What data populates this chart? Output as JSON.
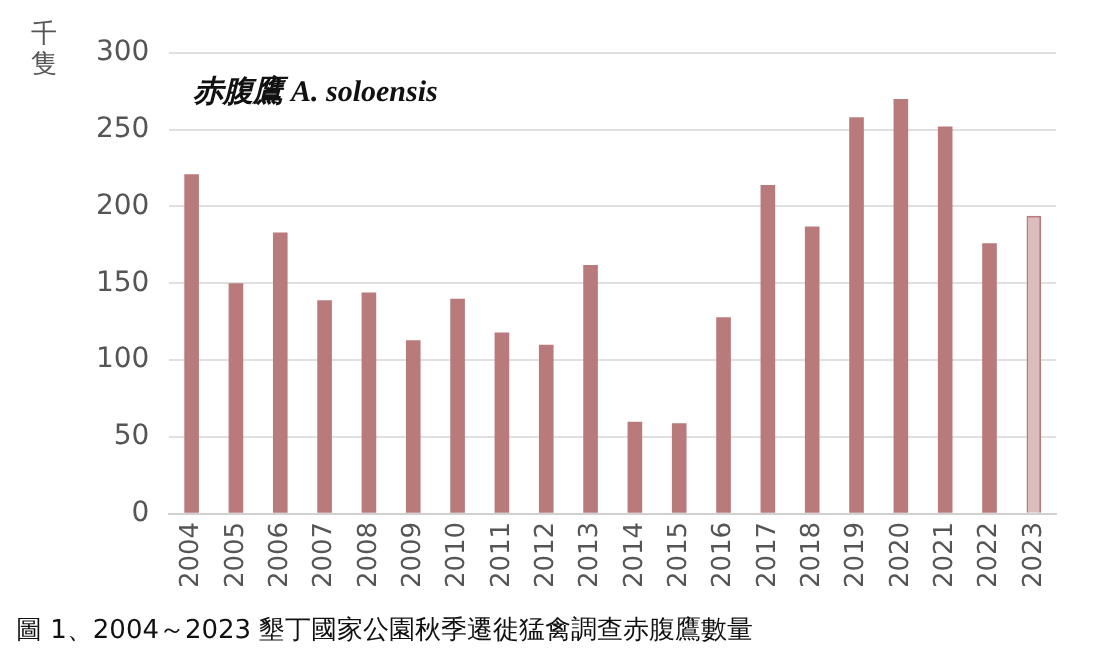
{
  "chart_data": {
    "type": "bar",
    "title": "赤腹鷹 A. soloensis",
    "ylabel": "千隻",
    "annotations": [
      "圖 1、2004～2023 墾丁國家公園秋季遷徙猛禽調查赤腹鷹數量"
    ],
    "categories": [
      "2004",
      "2005",
      "2006",
      "2007",
      "2008",
      "2009",
      "2010",
      "2011",
      "2012",
      "2013",
      "2014",
      "2015",
      "2016",
      "2017",
      "2018",
      "2019",
      "2020",
      "2021",
      "2022",
      "2023"
    ],
    "values": [
      221,
      150,
      183,
      139,
      144,
      113,
      140,
      118,
      110,
      162,
      60,
      59,
      128,
      214,
      187,
      258,
      270,
      252,
      176,
      194
    ],
    "colors": [
      "#b87a7a",
      "#b87a7a",
      "#b87a7a",
      "#b87a7a",
      "#b87a7a",
      "#b87a7a",
      "#b87a7a",
      "#b87a7a",
      "#b87a7a",
      "#b87a7a",
      "#b87a7a",
      "#b87a7a",
      "#b87a7a",
      "#b87a7a",
      "#b87a7a",
      "#b87a7a",
      "#b87a7a",
      "#b87a7a",
      "#b87a7a",
      "#dcbcbc"
    ],
    "ylim": [
      0,
      300
    ],
    "yticks": [
      0,
      50,
      100,
      150,
      200,
      250,
      300
    ],
    "grid": "y",
    "legend": false
  }
}
